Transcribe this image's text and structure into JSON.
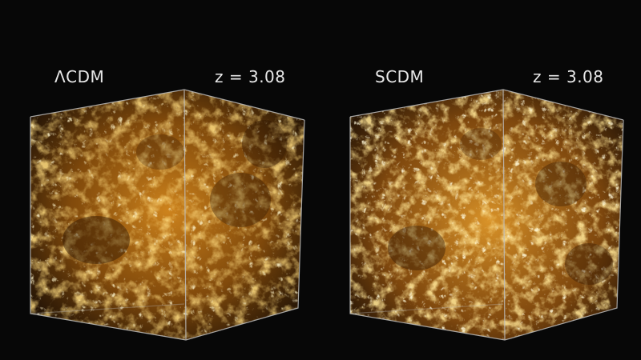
{
  "panels": [
    {
      "model_label": "ΛCDM",
      "redshift_label": "z = 3.08"
    },
    {
      "model_label": "SCDM",
      "redshift_label": "z = 3.08"
    }
  ],
  "colors": {
    "background": "#070707",
    "filament_bright": "#ffe9a0",
    "filament_mid": "#f2b040",
    "filament_deep": "#b86a10",
    "void": "#2a1503",
    "cube_edge": "#bdbdbd"
  }
}
